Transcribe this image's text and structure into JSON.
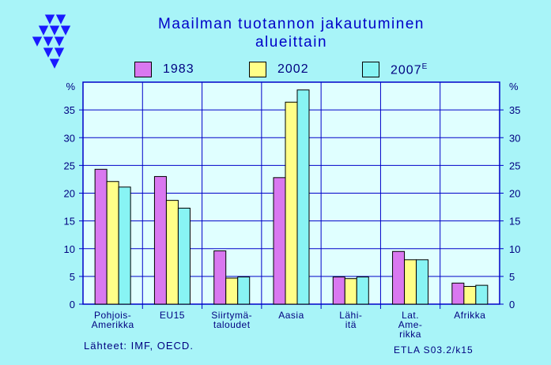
{
  "title_line1": "Maailman tuotannon jakautuminen",
  "title_line2": "alueittain",
  "legend": [
    {
      "label": "1983",
      "color": "#d978f0"
    },
    {
      "label": "2002",
      "color": "#ffff88"
    },
    {
      "label": "2007",
      "suffix": "E",
      "color": "#88f4f4"
    }
  ],
  "source_note": "Lähteet: IMF, OECD.",
  "figure_code": "ETLA S03.2/k15",
  "colors": {
    "background": "#a8f4f8",
    "plot": "#e0ffff",
    "axis": "#0000c8",
    "text": "#000080",
    "logo": "#1a1aff"
  },
  "chart_data": {
    "type": "bar",
    "unit": "%",
    "ylim": [
      0,
      40
    ],
    "yticks": [
      0,
      5,
      10,
      15,
      20,
      25,
      30,
      35
    ],
    "grid": true,
    "legend_position": "top",
    "categories": [
      {
        "label": [
          "Pohjois-",
          "Amerikka"
        ]
      },
      {
        "label": [
          "EU15"
        ]
      },
      {
        "label": [
          "Siirtymä-",
          "taloudet"
        ]
      },
      {
        "label": [
          "Aasia"
        ]
      },
      {
        "label": [
          "Lähi-",
          "itä"
        ]
      },
      {
        "label": [
          "Lat.",
          "Ame-",
          "rikka"
        ]
      },
      {
        "label": [
          "Afrikka"
        ]
      }
    ],
    "series": [
      {
        "name": "1983",
        "values": [
          24.3,
          23.0,
          9.6,
          22.8,
          4.9,
          9.5,
          3.8
        ]
      },
      {
        "name": "2002",
        "values": [
          22.1,
          18.7,
          4.7,
          36.4,
          4.6,
          8.0,
          3.2
        ]
      },
      {
        "name": "2007E",
        "values": [
          21.1,
          17.3,
          4.9,
          38.6,
          4.9,
          8.0,
          3.4
        ]
      }
    ]
  }
}
